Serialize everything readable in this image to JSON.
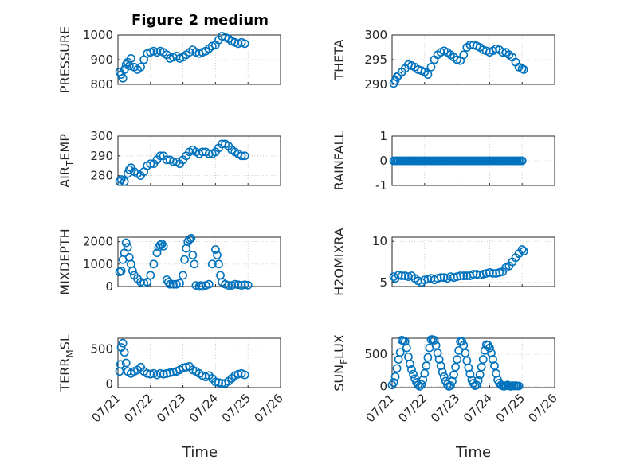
{
  "figure": {
    "title": "Figure 2 medium",
    "xlabel": "Time",
    "x_tick_labels": [
      "07/21",
      "07/22",
      "07/23",
      "07/24",
      "07/25",
      "07/26"
    ],
    "marker_color": "#0072BD"
  },
  "chart_data": [
    {
      "type": "scatter",
      "ylabel": "PRESSURE",
      "yticks": [
        "800",
        "900",
        "1000"
      ],
      "ylim": [
        800,
        1000
      ],
      "xlim": [
        21,
        26
      ],
      "grid": true,
      "x": [
        21.05,
        21.1,
        21.15,
        21.2,
        21.25,
        21.3,
        21.35,
        21.4,
        21.5,
        21.6,
        21.7,
        21.8,
        21.9,
        22.0,
        22.1,
        22.2,
        22.3,
        22.4,
        22.5,
        22.6,
        22.7,
        22.8,
        22.9,
        23.0,
        23.1,
        23.2,
        23.3,
        23.4,
        23.5,
        23.6,
        23.7,
        23.8,
        23.9,
        24.0,
        24.1,
        24.2,
        24.3,
        24.4,
        24.5,
        24.6,
        24.7,
        24.8,
        24.9
      ],
      "y": [
        850,
        840,
        825,
        860,
        880,
        890,
        875,
        905,
        870,
        860,
        870,
        900,
        925,
        930,
        935,
        930,
        935,
        930,
        920,
        905,
        910,
        915,
        905,
        910,
        920,
        930,
        940,
        930,
        925,
        930,
        935,
        945,
        955,
        960,
        980,
        995,
        990,
        985,
        975,
        970,
        965,
        970,
        965
      ]
    },
    {
      "type": "scatter",
      "ylabel": "THETA",
      "yticks": [
        "290",
        "295",
        "300"
      ],
      "ylim": [
        290,
        300
      ],
      "xlim": [
        21,
        26
      ],
      "grid": true,
      "x": [
        21.05,
        21.1,
        21.15,
        21.2,
        21.3,
        21.4,
        21.5,
        21.6,
        21.7,
        21.8,
        21.9,
        22.0,
        22.1,
        22.2,
        22.3,
        22.4,
        22.5,
        22.6,
        22.7,
        22.8,
        22.9,
        23.0,
        23.1,
        23.2,
        23.3,
        23.4,
        23.5,
        23.6,
        23.7,
        23.8,
        23.9,
        24.0,
        24.1,
        24.2,
        24.3,
        24.4,
        24.5,
        24.6,
        24.7,
        24.8,
        24.9,
        25.0,
        25.05
      ],
      "y": [
        290.2,
        290.8,
        291.5,
        291.8,
        292.5,
        293.2,
        294.0,
        293.8,
        293.5,
        293.0,
        292.8,
        292.5,
        292.0,
        293.5,
        295.0,
        296.0,
        296.5,
        296.8,
        296.5,
        296.0,
        295.5,
        295.0,
        294.8,
        296.0,
        297.5,
        298.0,
        298.0,
        297.8,
        297.5,
        297.0,
        296.8,
        296.5,
        296.8,
        297.2,
        297.0,
        296.5,
        296.5,
        296.0,
        295.5,
        294.5,
        293.5,
        293.2,
        293.0
      ]
    },
    {
      "type": "scatter",
      "ylabel": "AIR_TEMP",
      "ylabel_main": "AIR",
      "ylabel_sub": "T",
      "ylabel_rest": "EMP",
      "yticks": [
        "280",
        "290",
        "300"
      ],
      "ylim": [
        275,
        300
      ],
      "xlim": [
        21,
        26
      ],
      "grid": true,
      "x": [
        21.05,
        21.1,
        21.2,
        21.3,
        21.35,
        21.4,
        21.5,
        21.6,
        21.7,
        21.8,
        21.9,
        22.0,
        22.1,
        22.2,
        22.3,
        22.4,
        22.5,
        22.6,
        22.7,
        22.8,
        22.9,
        23.0,
        23.1,
        23.2,
        23.3,
        23.4,
        23.5,
        23.6,
        23.7,
        23.8,
        23.9,
        24.0,
        24.1,
        24.2,
        24.3,
        24.4,
        24.5,
        24.6,
        24.7,
        24.8,
        24.9
      ],
      "y": [
        277,
        278,
        277,
        281,
        283,
        284,
        282,
        281,
        280,
        282,
        285,
        286,
        286,
        288,
        290,
        290,
        288,
        288,
        287,
        287,
        286,
        288,
        290,
        292,
        293,
        292,
        291,
        292,
        292,
        291,
        291,
        292,
        294,
        296,
        296,
        295,
        293,
        292,
        291,
        290,
        290
      ]
    },
    {
      "type": "scatter",
      "ylabel": "RAINFALL",
      "yticks": [
        "-1",
        "0",
        "1"
      ],
      "ylim": [
        -1,
        1
      ],
      "xlim": [
        21,
        26
      ],
      "grid": true,
      "x": [
        21.05,
        21.1,
        21.15,
        21.2,
        21.25,
        21.3,
        21.35,
        21.4,
        21.45,
        21.5,
        21.55,
        21.6,
        21.65,
        21.7,
        21.75,
        21.8,
        21.85,
        21.9,
        21.95,
        22.0,
        22.05,
        22.1,
        22.15,
        22.2,
        22.25,
        22.3,
        22.35,
        22.4,
        22.45,
        22.5,
        22.55,
        22.6,
        22.65,
        22.7,
        22.75,
        22.8,
        22.85,
        22.9,
        22.95,
        23.0,
        23.05,
        23.1,
        23.15,
        23.2,
        23.25,
        23.3,
        23.35,
        23.4,
        23.45,
        23.5,
        23.55,
        23.6,
        23.65,
        23.7,
        23.75,
        23.8,
        23.85,
        23.9,
        23.95,
        24.0,
        24.05,
        24.1,
        24.15,
        24.2,
        24.25,
        24.3,
        24.35,
        24.4,
        24.45,
        24.5,
        24.55,
        24.6,
        24.65,
        24.7,
        24.75,
        24.8,
        24.85,
        24.9,
        24.95,
        25.0
      ],
      "y": [
        0,
        0,
        0,
        0,
        0,
        0,
        0,
        0,
        0,
        0,
        0,
        0,
        0,
        0,
        0,
        0,
        0,
        0,
        0,
        0,
        0,
        0,
        0,
        0,
        0,
        0,
        0,
        0,
        0,
        0,
        0,
        0,
        0,
        0,
        0,
        0,
        0,
        0,
        0,
        0,
        0,
        0,
        0,
        0,
        0,
        0,
        0,
        0,
        0,
        0,
        0,
        0,
        0,
        0,
        0,
        0,
        0,
        0,
        0,
        0,
        0,
        0,
        0,
        0,
        0,
        0,
        0,
        0,
        0,
        0,
        0,
        0,
        0,
        0,
        0,
        0,
        0,
        0,
        0,
        0
      ]
    },
    {
      "type": "scatter",
      "ylabel": "MIXDEPTH",
      "yticks": [
        "0",
        "1000",
        "2000"
      ],
      "ylim": [
        0,
        2200
      ],
      "xlim": [
        21,
        26
      ],
      "grid": true,
      "x": [
        21.05,
        21.1,
        21.15,
        21.2,
        21.25,
        21.3,
        21.35,
        21.4,
        21.45,
        21.5,
        21.6,
        21.7,
        21.8,
        21.9,
        22.0,
        22.1,
        22.2,
        22.25,
        22.3,
        22.35,
        22.4,
        22.5,
        22.55,
        22.6,
        22.7,
        22.8,
        22.9,
        23.0,
        23.05,
        23.1,
        23.15,
        23.2,
        23.25,
        23.3,
        23.35,
        23.4,
        23.5,
        23.55,
        23.6,
        23.7,
        23.8,
        23.9,
        24.0,
        24.05,
        24.1,
        24.15,
        24.2,
        24.3,
        24.4,
        24.5,
        24.6,
        24.7,
        24.8,
        24.9,
        25.0
      ],
      "y": [
        650,
        700,
        1200,
        1500,
        1950,
        1750,
        1300,
        1000,
        700,
        500,
        350,
        200,
        150,
        200,
        500,
        1000,
        1500,
        1750,
        1850,
        1900,
        1800,
        300,
        200,
        100,
        100,
        100,
        150,
        500,
        1200,
        1700,
        2000,
        2100,
        2150,
        1400,
        1000,
        50,
        0,
        50,
        0,
        50,
        100,
        1000,
        1650,
        1400,
        1000,
        500,
        200,
        100,
        50,
        50,
        100,
        80,
        50,
        80,
        60
      ]
    },
    {
      "type": "scatter",
      "ylabel": "H2OMIXRA",
      "yticks": [
        "5",
        "10"
      ],
      "ylim": [
        4.5,
        10.5
      ],
      "xlim": [
        21,
        26
      ],
      "grid": true,
      "x": [
        21.05,
        21.1,
        21.2,
        21.3,
        21.4,
        21.5,
        21.6,
        21.7,
        21.8,
        21.9,
        22.0,
        22.1,
        22.2,
        22.3,
        22.4,
        22.5,
        22.6,
        22.7,
        22.8,
        22.9,
        23.0,
        23.1,
        23.2,
        23.3,
        23.4,
        23.5,
        23.6,
        23.7,
        23.8,
        23.9,
        24.0,
        24.1,
        24.2,
        24.3,
        24.4,
        24.5,
        24.6,
        24.7,
        24.8,
        24.9,
        25.0,
        25.05
      ],
      "y": [
        5.7,
        5.5,
        5.9,
        5.8,
        5.8,
        5.7,
        5.8,
        5.5,
        5.2,
        5.0,
        5.3,
        5.4,
        5.5,
        5.3,
        5.5,
        5.6,
        5.6,
        5.5,
        5.7,
        5.6,
        5.7,
        5.8,
        5.8,
        5.8,
        5.8,
        6.0,
        6.0,
        5.9,
        6.0,
        6.1,
        6.2,
        6.1,
        6.1,
        6.2,
        6.3,
        6.8,
        7.0,
        7.5,
        8.0,
        8.5,
        9.0,
        8.8
      ]
    },
    {
      "type": "scatter",
      "ylabel": "TERR_MSL",
      "ylabel_main": "TERR",
      "ylabel_sub": "M",
      "ylabel_rest": "SL",
      "yticks": [
        "0",
        "500"
      ],
      "ylim": [
        -50,
        650
      ],
      "xlim": [
        21,
        26
      ],
      "grid": true,
      "x": [
        21.05,
        21.08,
        21.1,
        21.15,
        21.2,
        21.25,
        21.3,
        21.4,
        21.5,
        21.6,
        21.7,
        21.8,
        21.9,
        22.0,
        22.1,
        22.2,
        22.3,
        22.4,
        22.5,
        22.6,
        22.7,
        22.8,
        22.9,
        23.0,
        23.1,
        23.2,
        23.3,
        23.4,
        23.5,
        23.6,
        23.7,
        23.8,
        23.9,
        24.0,
        24.1,
        24.2,
        24.3,
        24.4,
        24.5,
        24.6,
        24.7,
        24.8,
        24.9
      ],
      "y": [
        180,
        280,
        520,
        580,
        450,
        300,
        180,
        150,
        180,
        200,
        240,
        180,
        150,
        140,
        150,
        130,
        150,
        140,
        150,
        160,
        170,
        180,
        200,
        230,
        240,
        250,
        200,
        180,
        150,
        120,
        100,
        120,
        80,
        30,
        20,
        10,
        10,
        40,
        80,
        120,
        140,
        150,
        130
      ]
    },
    {
      "type": "scatter",
      "ylabel": "SUN_FLUX",
      "ylabel_main": "SUN",
      "ylabel_sub": "F",
      "ylabel_rest": "LUX",
      "yticks": [
        "0",
        "500"
      ],
      "ylim": [
        -20,
        750
      ],
      "xlim": [
        21,
        26
      ],
      "grid": true,
      "x": [
        21.0,
        21.05,
        21.1,
        21.15,
        21.2,
        21.25,
        21.3,
        21.35,
        21.4,
        21.45,
        21.5,
        21.55,
        21.6,
        21.65,
        21.7,
        21.75,
        21.8,
        21.85,
        21.9,
        21.95,
        22.0,
        22.05,
        22.1,
        22.15,
        22.2,
        22.25,
        22.3,
        22.35,
        22.4,
        22.45,
        22.5,
        22.55,
        22.6,
        22.65,
        22.7,
        22.75,
        22.8,
        22.85,
        22.9,
        22.95,
        23.0,
        23.05,
        23.1,
        23.15,
        23.2,
        23.25,
        23.3,
        23.35,
        23.4,
        23.45,
        23.5,
        23.55,
        23.6,
        23.65,
        23.7,
        23.75,
        23.8,
        23.85,
        23.9,
        23.95,
        24.0,
        24.05,
        24.1,
        24.15,
        24.2,
        24.25,
        24.3,
        24.35,
        24.4,
        24.45,
        24.5,
        24.55,
        24.6,
        24.65,
        24.7,
        24.75,
        24.8,
        24.85,
        24.9
      ],
      "y": [
        20,
        60,
        150,
        280,
        420,
        530,
        720,
        710,
        700,
        600,
        460,
        350,
        260,
        190,
        120,
        60,
        20,
        0,
        30,
        100,
        200,
        320,
        450,
        600,
        730,
        730,
        720,
        640,
        520,
        420,
        320,
        220,
        150,
        80,
        30,
        0,
        10,
        80,
        180,
        300,
        420,
        560,
        700,
        700,
        640,
        520,
        400,
        290,
        190,
        100,
        50,
        10,
        20,
        90,
        180,
        300,
        420,
        560,
        650,
        640,
        600,
        520,
        420,
        320,
        200,
        100,
        50,
        20,
        5,
        0,
        10,
        20,
        5,
        0,
        10,
        5,
        10,
        5,
        5
      ]
    }
  ]
}
